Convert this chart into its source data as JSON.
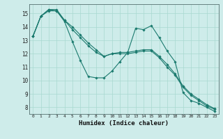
{
  "xlabel": "Humidex (Indice chaleur)",
  "bg_color": "#ceecea",
  "grid_color": "#a8d8d0",
  "line_color": "#1a7a6e",
  "xlim": [
    -0.5,
    23.5
  ],
  "ylim": [
    7.5,
    15.7
  ],
  "xticks": [
    0,
    1,
    2,
    3,
    4,
    5,
    6,
    7,
    8,
    9,
    10,
    11,
    12,
    13,
    14,
    15,
    16,
    17,
    18,
    19,
    20,
    21,
    22,
    23
  ],
  "yticks": [
    8,
    9,
    10,
    11,
    12,
    13,
    14,
    15
  ],
  "line1": [
    13.3,
    14.8,
    15.2,
    15.2,
    14.4,
    12.9,
    11.5,
    10.3,
    10.2,
    10.2,
    10.7,
    11.4,
    12.1,
    13.9,
    13.8,
    14.1,
    13.2,
    12.2,
    11.4,
    9.1,
    8.5,
    8.3,
    8.0,
    7.7
  ],
  "line2": [
    13.3,
    14.8,
    15.3,
    15.3,
    14.5,
    14.0,
    13.4,
    12.8,
    12.3,
    11.8,
    12.0,
    12.1,
    12.1,
    12.2,
    12.3,
    12.3,
    11.8,
    11.2,
    10.5,
    9.6,
    9.0,
    8.6,
    8.2,
    7.9
  ],
  "line3": [
    13.3,
    14.8,
    15.3,
    15.2,
    14.5,
    13.8,
    13.2,
    12.6,
    12.1,
    11.8,
    12.0,
    12.0,
    12.0,
    12.1,
    12.2,
    12.2,
    11.7,
    11.0,
    10.4,
    9.5,
    8.9,
    8.5,
    8.1,
    7.85
  ]
}
